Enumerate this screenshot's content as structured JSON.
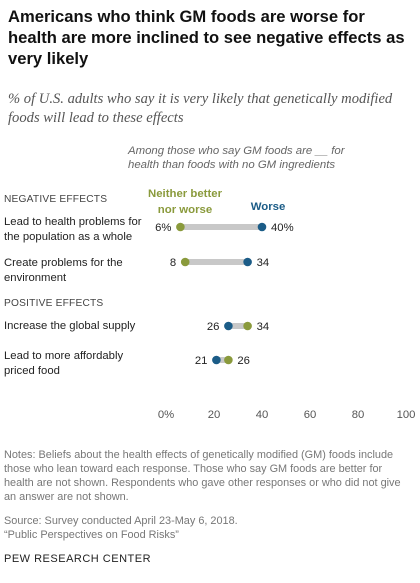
{
  "title": "Americans who think GM foods are worse for health are more inclined to see negative effects as very likely",
  "subtitle": "% of U.S. adults who say it is very likely that genetically modified foods will lead to these effects",
  "chart_note": "Among those who say GM foods are __ for health than foods with no GM ingredients",
  "legend": {
    "neither": "Neither better nor worse",
    "worse": "Worse"
  },
  "sections": {
    "negative": "NEGATIVE EFFECTS",
    "positive": "POSITIVE EFFECTS"
  },
  "colors": {
    "neither": "#8a9a3c",
    "worse": "#1b5c87",
    "connector": "#c8c8c8"
  },
  "chart_data": {
    "type": "dot",
    "xlim": [
      0,
      100
    ],
    "x_ticks": [
      0,
      20,
      40,
      60,
      80,
      100
    ],
    "x_tick_labels": [
      "0%",
      "20",
      "40",
      "60",
      "80",
      "100"
    ],
    "series": [
      {
        "name": "Neither better nor worse",
        "values": [
          6,
          8,
          34,
          26
        ]
      },
      {
        "name": "Worse",
        "values": [
          40,
          34,
          26,
          21
        ]
      }
    ],
    "categories": [
      "Lead to health problems for the population as a whole",
      "Create problems for the environment",
      "Increase the global supply",
      "Lead to more affordably priced food"
    ],
    "groups": [
      "NEGATIVE EFFECTS",
      "NEGATIVE EFFECTS",
      "POSITIVE EFFECTS",
      "POSITIVE EFFECTS"
    ],
    "value_labels": [
      {
        "neither": "6%",
        "worse": "40%"
      },
      {
        "neither": "8",
        "worse": "34"
      },
      {
        "neither": "34",
        "worse": "26"
      },
      {
        "neither": "26",
        "worse": "21"
      }
    ]
  },
  "notes": "Notes: Beliefs about the health effects of genetically modified (GM) foods include those who lean toward each response. Those who say GM foods are better for health are not shown. Respondents who gave other responses or who did not give an answer are not shown.",
  "source": "Source: Survey conducted April 23-May 6, 2018.",
  "report": "“Public Perspectives on Food Risks”",
  "organization": "PEW RESEARCH CENTER"
}
